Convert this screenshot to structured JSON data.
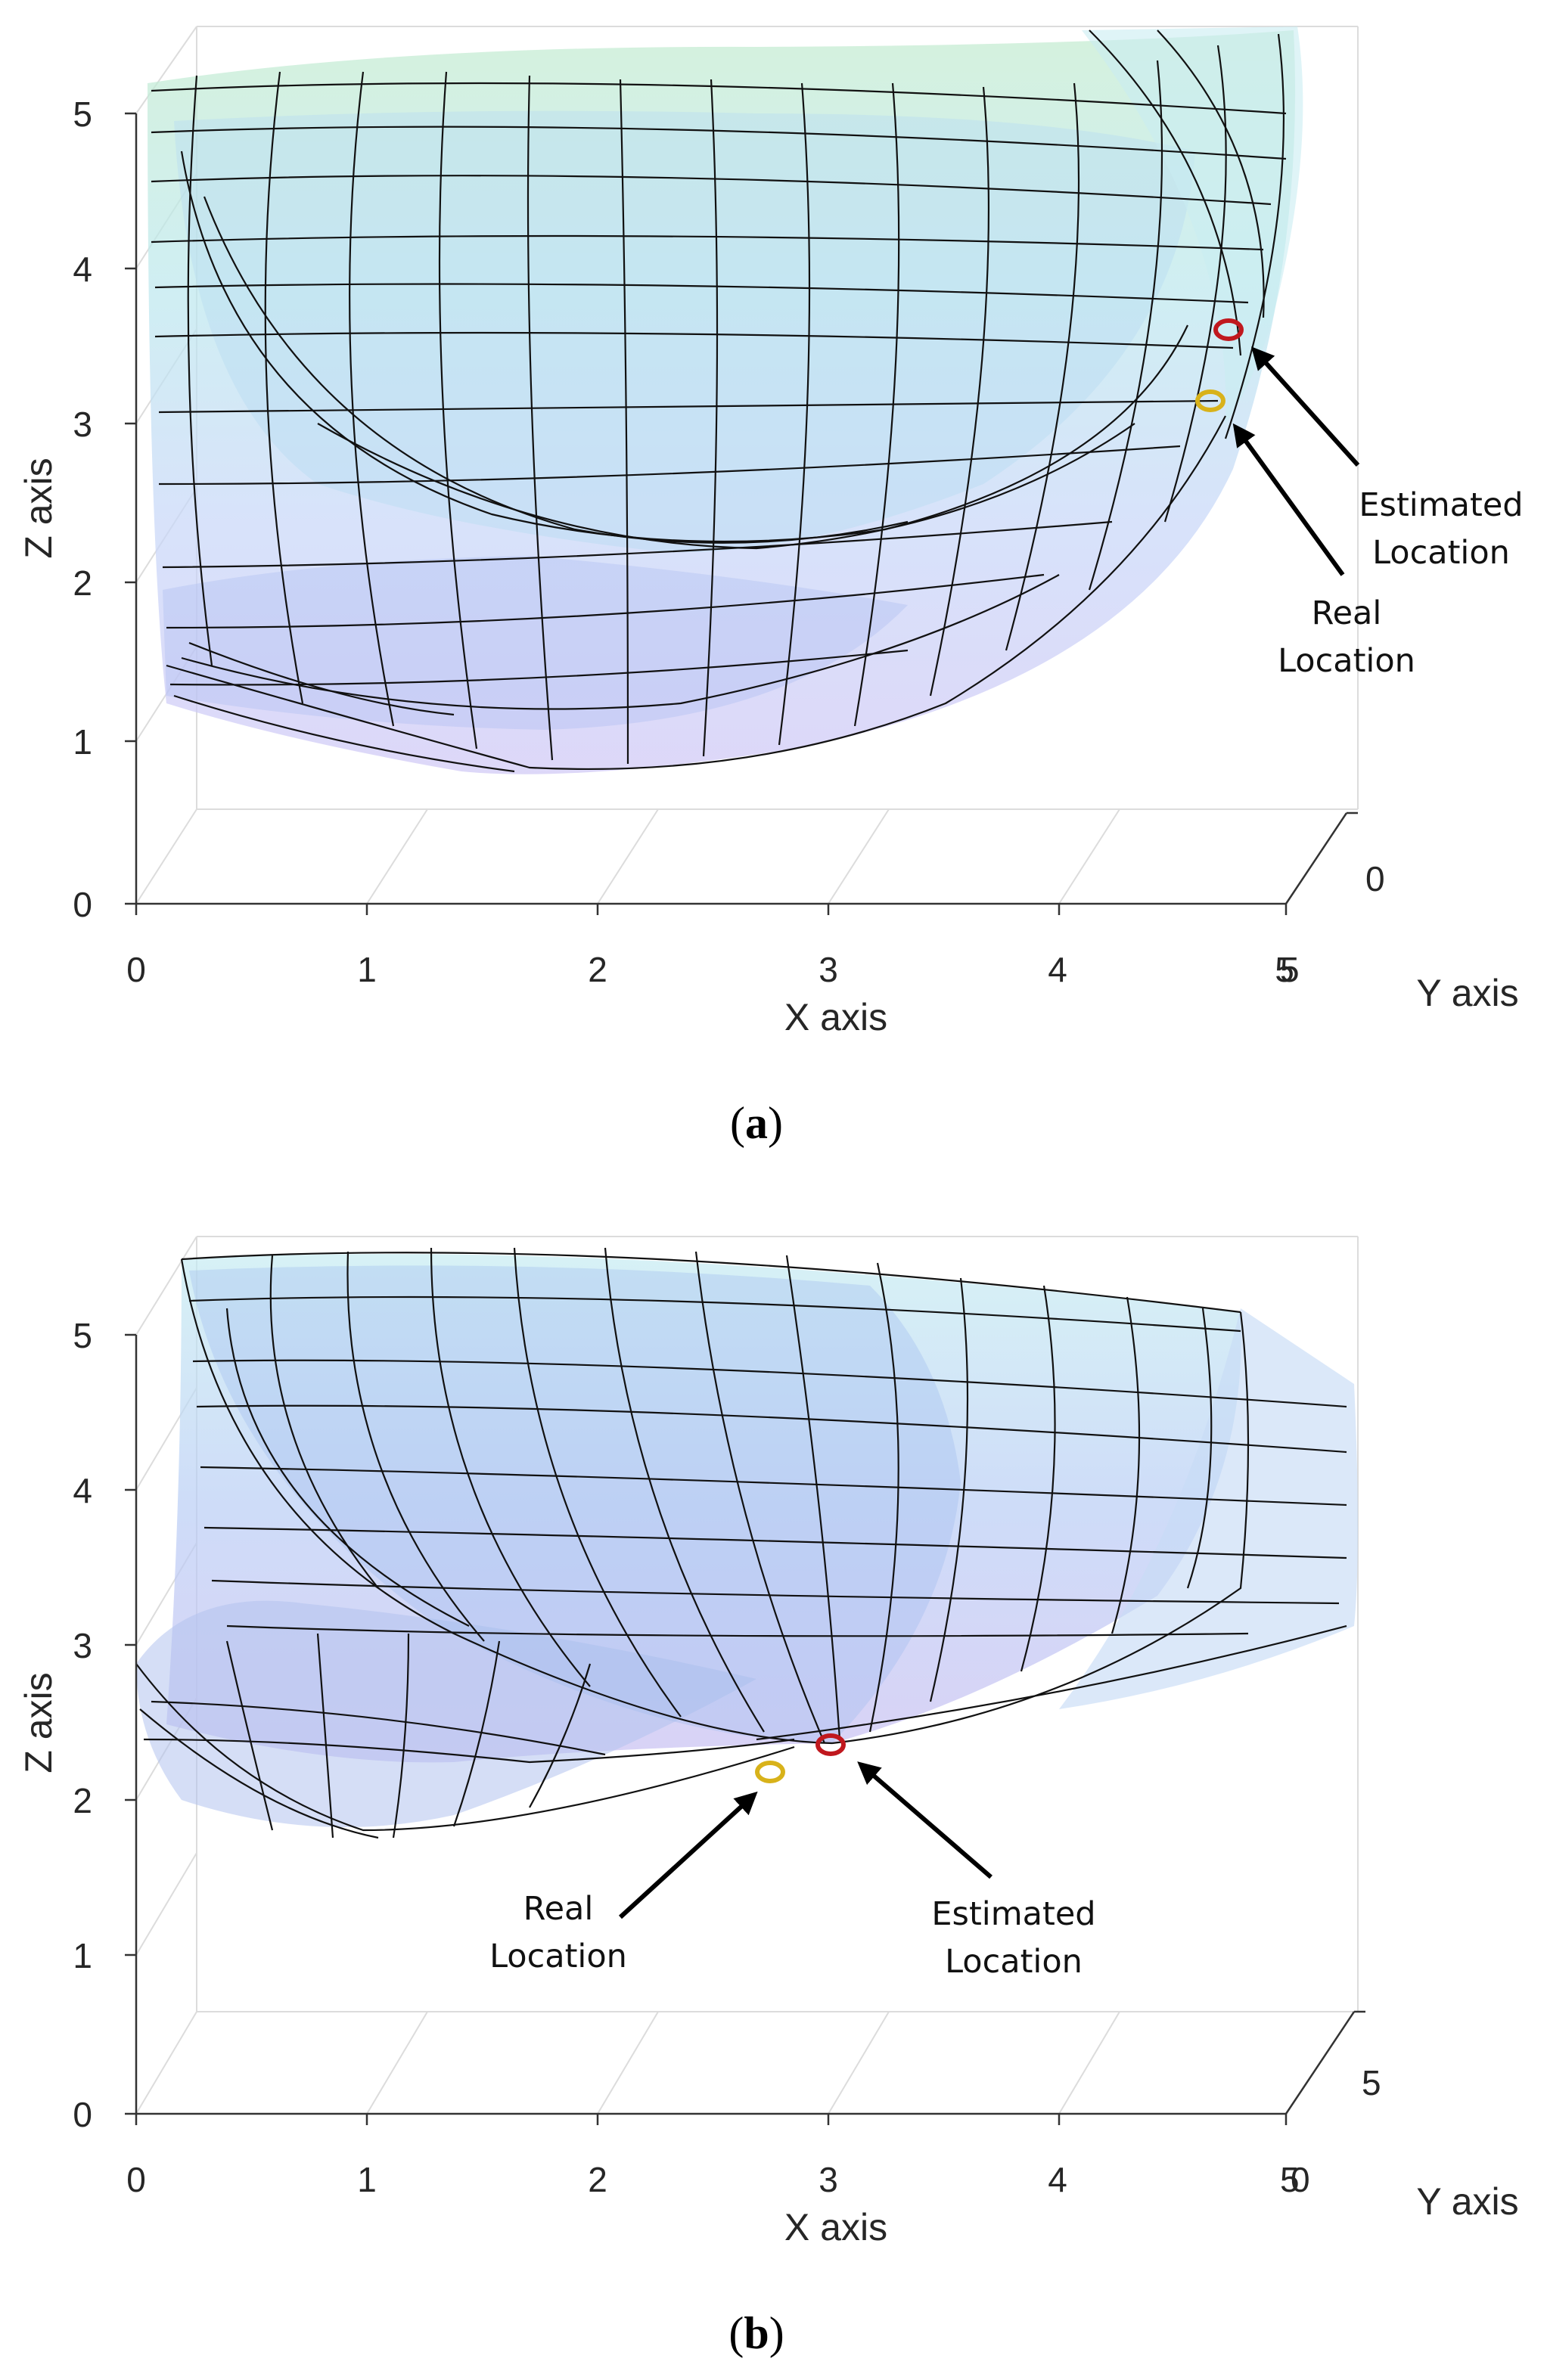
{
  "chart_data": [
    {
      "panel": "(a)",
      "caption_letter": "a",
      "type": "surface3d",
      "xlabel": "X axis",
      "ylabel": "Y axis",
      "zlabel": "Z axis",
      "x_ticks": [
        "0",
        "1",
        "2",
        "3",
        "4",
        "5"
      ],
      "y_ticks": [
        "0",
        "5"
      ],
      "z_ticks": [
        "0",
        "1",
        "2",
        "3",
        "4",
        "5"
      ],
      "xlim": [
        0,
        5
      ],
      "zlim": [
        0,
        5.3
      ],
      "markers": [
        {
          "name": "Estimated Location",
          "label_lines": [
            "Estimated",
            "Location"
          ],
          "color": "#c0181e",
          "z": 3.6
        },
        {
          "name": "Real Location",
          "label_lines": [
            "Real",
            "Location"
          ],
          "color": "#d8b21a",
          "z": 3.15
        }
      ]
    },
    {
      "panel": "(b)",
      "caption_letter": "b",
      "type": "surface3d",
      "xlabel": "X axis",
      "ylabel": "Y axis",
      "zlabel": "Z axis",
      "x_ticks": [
        "0",
        "1",
        "2",
        "3",
        "4",
        "5"
      ],
      "y_ticks": [
        "0",
        "5"
      ],
      "z_ticks": [
        "0",
        "1",
        "2",
        "3",
        "4",
        "5"
      ],
      "xlim": [
        0,
        5
      ],
      "zlim": [
        0,
        5.3
      ],
      "markers": [
        {
          "name": "Estimated Location",
          "label_lines": [
            "Estimated",
            "Location"
          ],
          "color": "#c0181e",
          "z": 2.3
        },
        {
          "name": "Real Location",
          "label_lines": [
            "Real",
            "Location"
          ],
          "color": "#d8b21a",
          "z": 2.15
        }
      ]
    }
  ]
}
